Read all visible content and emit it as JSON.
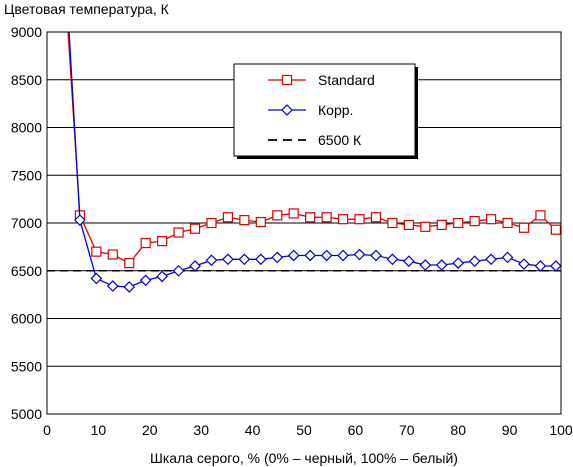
{
  "chart_data": {
    "type": "line",
    "title": "",
    "ylabel": "Цветовая температура, К",
    "xlabel": "Шкала серого, % (0% – черный, 100% – белый)",
    "xlim": [
      0,
      100
    ],
    "ylim": [
      5000,
      9000
    ],
    "x_ticks": [
      "0",
      "10",
      "20",
      "30",
      "40",
      "50",
      "60",
      "70",
      "80",
      "90",
      "100"
    ],
    "y_ticks": [
      "5000",
      "5500",
      "6000",
      "6500",
      "7000",
      "7500",
      "8000",
      "8500",
      "9000"
    ],
    "grid": "horizontal",
    "legend_position": "top-right",
    "series": [
      {
        "name": "Standard",
        "color": "#e00000",
        "marker": "square",
        "x": [
          4.1,
          6.4,
          9.6,
          12.8,
          16,
          19.2,
          22.4,
          25.6,
          28.8,
          32,
          35.2,
          38.4,
          41.6,
          44.8,
          48,
          51.2,
          54.4,
          57.6,
          60.8,
          64,
          67.2,
          70.4,
          73.6,
          76.8,
          80,
          83.2,
          86.4,
          89.6,
          92.8,
          96,
          99
        ],
        "y": [
          9000,
          7080,
          6700,
          6670,
          6580,
          6790,
          6810,
          6900,
          6940,
          7000,
          7060,
          7030,
          7010,
          7080,
          7100,
          7060,
          7060,
          7040,
          7040,
          7060,
          7000,
          6980,
          6960,
          6980,
          7000,
          7020,
          7040,
          7000,
          6950,
          7080,
          6930
        ]
      },
      {
        "name": "Корр.",
        "color": "#0000e0",
        "marker": "diamond",
        "x": [
          4.3,
          6.4,
          9.6,
          12.8,
          16,
          19.2,
          22.4,
          25.6,
          28.8,
          32,
          35.2,
          38.4,
          41.6,
          44.8,
          48,
          51.2,
          54.4,
          57.6,
          60.8,
          64,
          67.2,
          70.4,
          73.6,
          76.8,
          80,
          83.2,
          86.4,
          89.6,
          92.8,
          96,
          99
        ],
        "y": [
          9000,
          7030,
          6420,
          6340,
          6330,
          6400,
          6440,
          6500,
          6550,
          6610,
          6620,
          6620,
          6620,
          6640,
          6660,
          6660,
          6660,
          6660,
          6670,
          6660,
          6620,
          6600,
          6560,
          6560,
          6580,
          6600,
          6620,
          6640,
          6570,
          6550,
          6550
        ]
      },
      {
        "name": "6500 К",
        "color": "#000000",
        "style": "dashed",
        "x": [
          0,
          100
        ],
        "y": [
          6500,
          6500
        ]
      }
    ]
  }
}
